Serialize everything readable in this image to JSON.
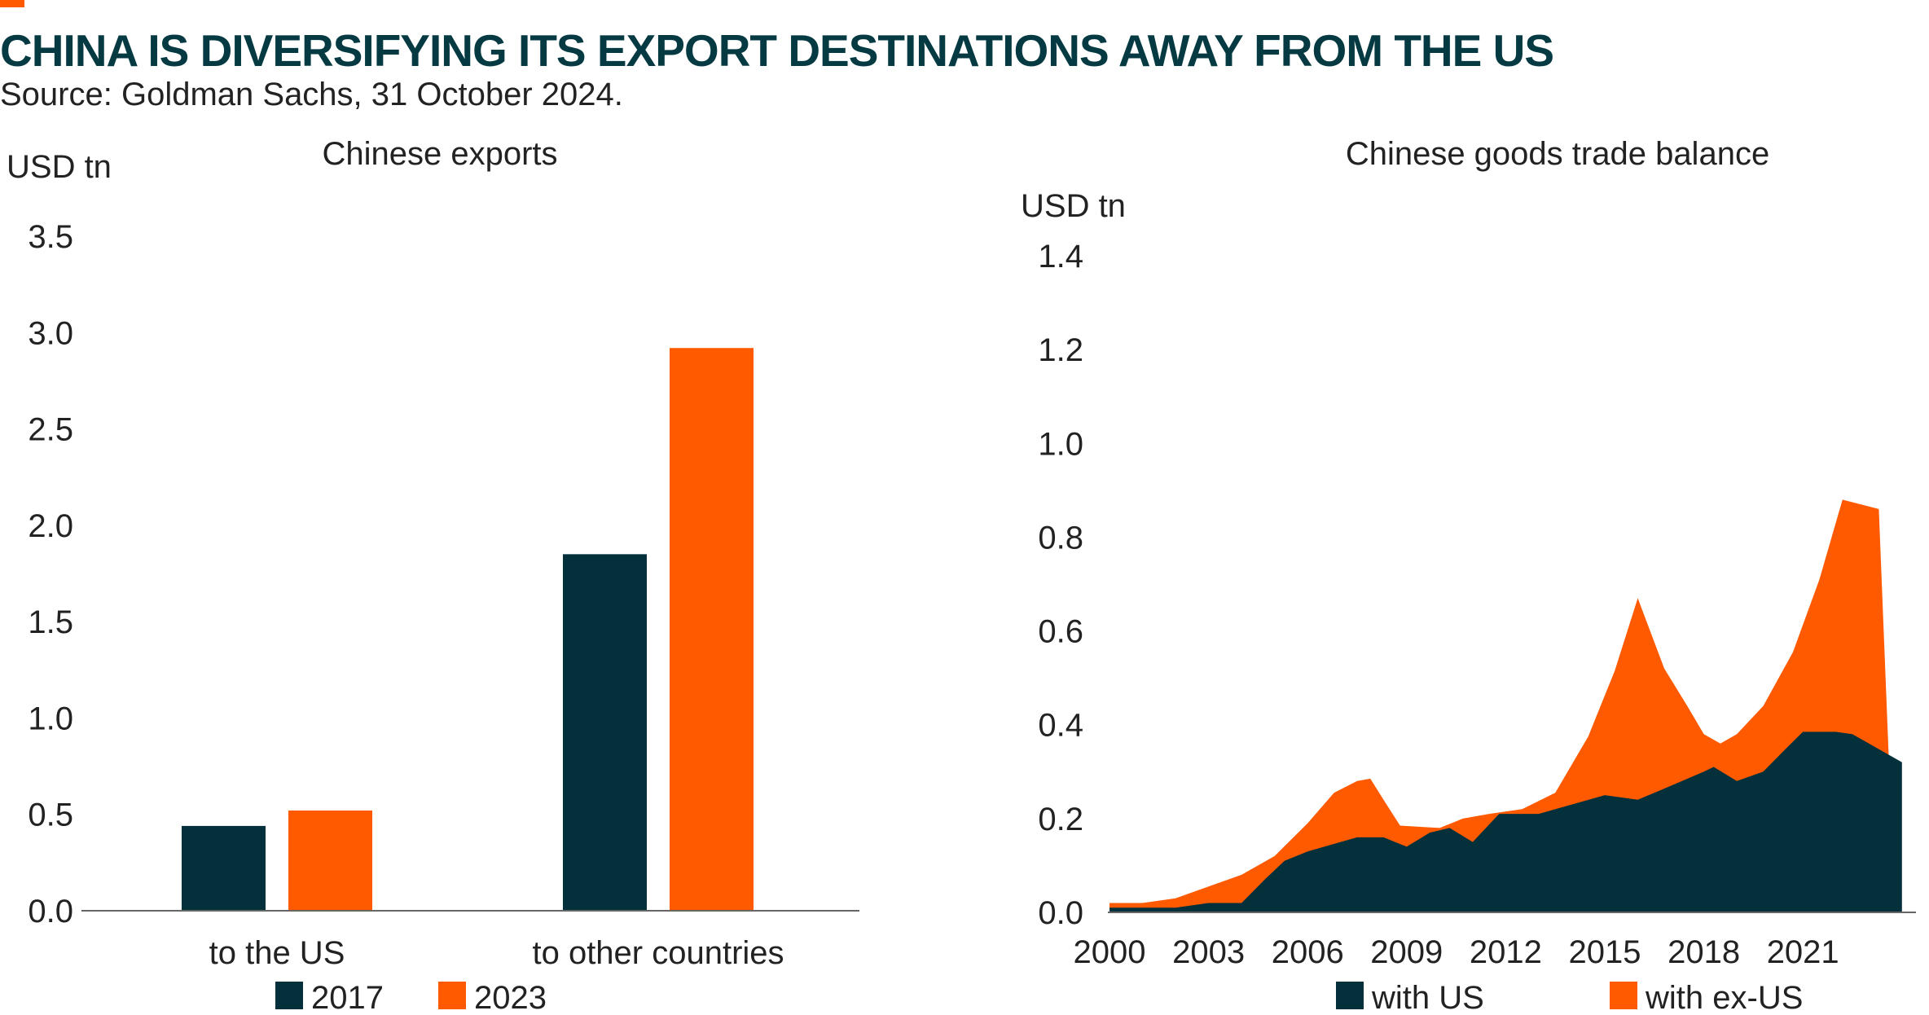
{
  "header": {
    "title": "CHINA IS DIVERSIFYING ITS EXPORT DESTINATIONS AWAY FROM THE US",
    "source": "Source: Goldman Sachs, 31 October 2024."
  },
  "colors": {
    "dark": "#03303a",
    "orange": "#ff5a00",
    "title": "#063a43",
    "axis": "#666666"
  },
  "chart_data": [
    {
      "type": "bar",
      "title": "Chinese exports",
      "ylabel": "USD tn",
      "ylim": [
        0,
        3.5
      ],
      "yticks": [
        "0.0",
        "0.5",
        "1.0",
        "1.5",
        "2.0",
        "2.5",
        "3.0",
        "3.5"
      ],
      "categories": [
        "to the US",
        "to other countries"
      ],
      "series": [
        {
          "name": "2017",
          "color": "#03303a",
          "values": [
            0.44,
            1.85
          ]
        },
        {
          "name": "2023",
          "color": "#ff5a00",
          "values": [
            0.52,
            2.92
          ]
        }
      ],
      "grid": false,
      "legend": "bottom"
    },
    {
      "type": "area",
      "title": "Chinese goods trade balance",
      "ylabel": "USD tn",
      "ylim": [
        0,
        1.4
      ],
      "yticks": [
        "0.0",
        "0.2",
        "0.4",
        "0.6",
        "0.8",
        "1.0",
        "1.2",
        "1.4"
      ],
      "xlim": [
        2000,
        2024.4
      ],
      "xticks": [
        "2000",
        "2003",
        "2006",
        "2009",
        "2012",
        "2015",
        "2018",
        "2021"
      ],
      "stacked": true,
      "series": [
        {
          "name": "with US",
          "color": "#03303a",
          "points": [
            [
              2000.0,
              0.01
            ],
            [
              2001.0,
              0.01
            ],
            [
              2002.0,
              0.01
            ],
            [
              2002.5,
              0.015
            ],
            [
              2003.0,
              0.02
            ],
            [
              2004.0,
              0.02
            ],
            [
              2004.7,
              0.07
            ],
            [
              2005.3,
              0.11
            ],
            [
              2006.0,
              0.13
            ],
            [
              2007.0,
              0.15
            ],
            [
              2007.5,
              0.16
            ],
            [
              2008.3,
              0.16
            ],
            [
              2009.0,
              0.14
            ],
            [
              2009.7,
              0.17
            ],
            [
              2010.3,
              0.18
            ],
            [
              2011.0,
              0.15
            ],
            [
              2011.8,
              0.21
            ],
            [
              2013.0,
              0.21
            ],
            [
              2014.0,
              0.23
            ],
            [
              2015.0,
              0.25
            ],
            [
              2016.0,
              0.24
            ],
            [
              2017.0,
              0.27
            ],
            [
              2018.0,
              0.3
            ],
            [
              2018.3,
              0.31
            ],
            [
              2019.0,
              0.28
            ],
            [
              2019.8,
              0.3
            ],
            [
              2020.5,
              0.35
            ],
            [
              2021.0,
              0.385
            ],
            [
              2022.0,
              0.385
            ],
            [
              2022.5,
              0.38
            ],
            [
              2023.0,
              0.36
            ],
            [
              2024.0,
              0.32
            ]
          ]
        },
        {
          "name": "with ex-US",
          "color": "#ff5a00",
          "total_points": [
            [
              2000.0,
              0.02
            ],
            [
              2001.0,
              0.02
            ],
            [
              2001.5,
              0.025
            ],
            [
              2002.0,
              0.03
            ],
            [
              2003.0,
              0.055
            ],
            [
              2004.0,
              0.08
            ],
            [
              2005.0,
              0.12
            ],
            [
              2006.0,
              0.19
            ],
            [
              2006.8,
              0.255
            ],
            [
              2007.5,
              0.28
            ],
            [
              2007.9,
              0.285
            ],
            [
              2008.3,
              0.24
            ],
            [
              2008.8,
              0.185
            ],
            [
              2009.5,
              0.182
            ],
            [
              2010.0,
              0.18
            ],
            [
              2010.7,
              0.2
            ],
            [
              2011.5,
              0.21
            ],
            [
              2012.5,
              0.22
            ],
            [
              2013.5,
              0.255
            ],
            [
              2014.5,
              0.375
            ],
            [
              2015.3,
              0.515
            ],
            [
              2016.0,
              0.67
            ],
            [
              2016.8,
              0.52
            ],
            [
              2017.5,
              0.44
            ],
            [
              2018.0,
              0.38
            ],
            [
              2018.5,
              0.36
            ],
            [
              2019.0,
              0.38
            ],
            [
              2019.8,
              0.44
            ],
            [
              2020.7,
              0.555
            ],
            [
              2021.5,
              0.71
            ],
            [
              2022.2,
              0.88
            ],
            [
              2023.3,
              0.86
            ],
            [
              2023.6,
              0.33
            ]
          ]
        }
      ],
      "legend": "bottom"
    }
  ]
}
